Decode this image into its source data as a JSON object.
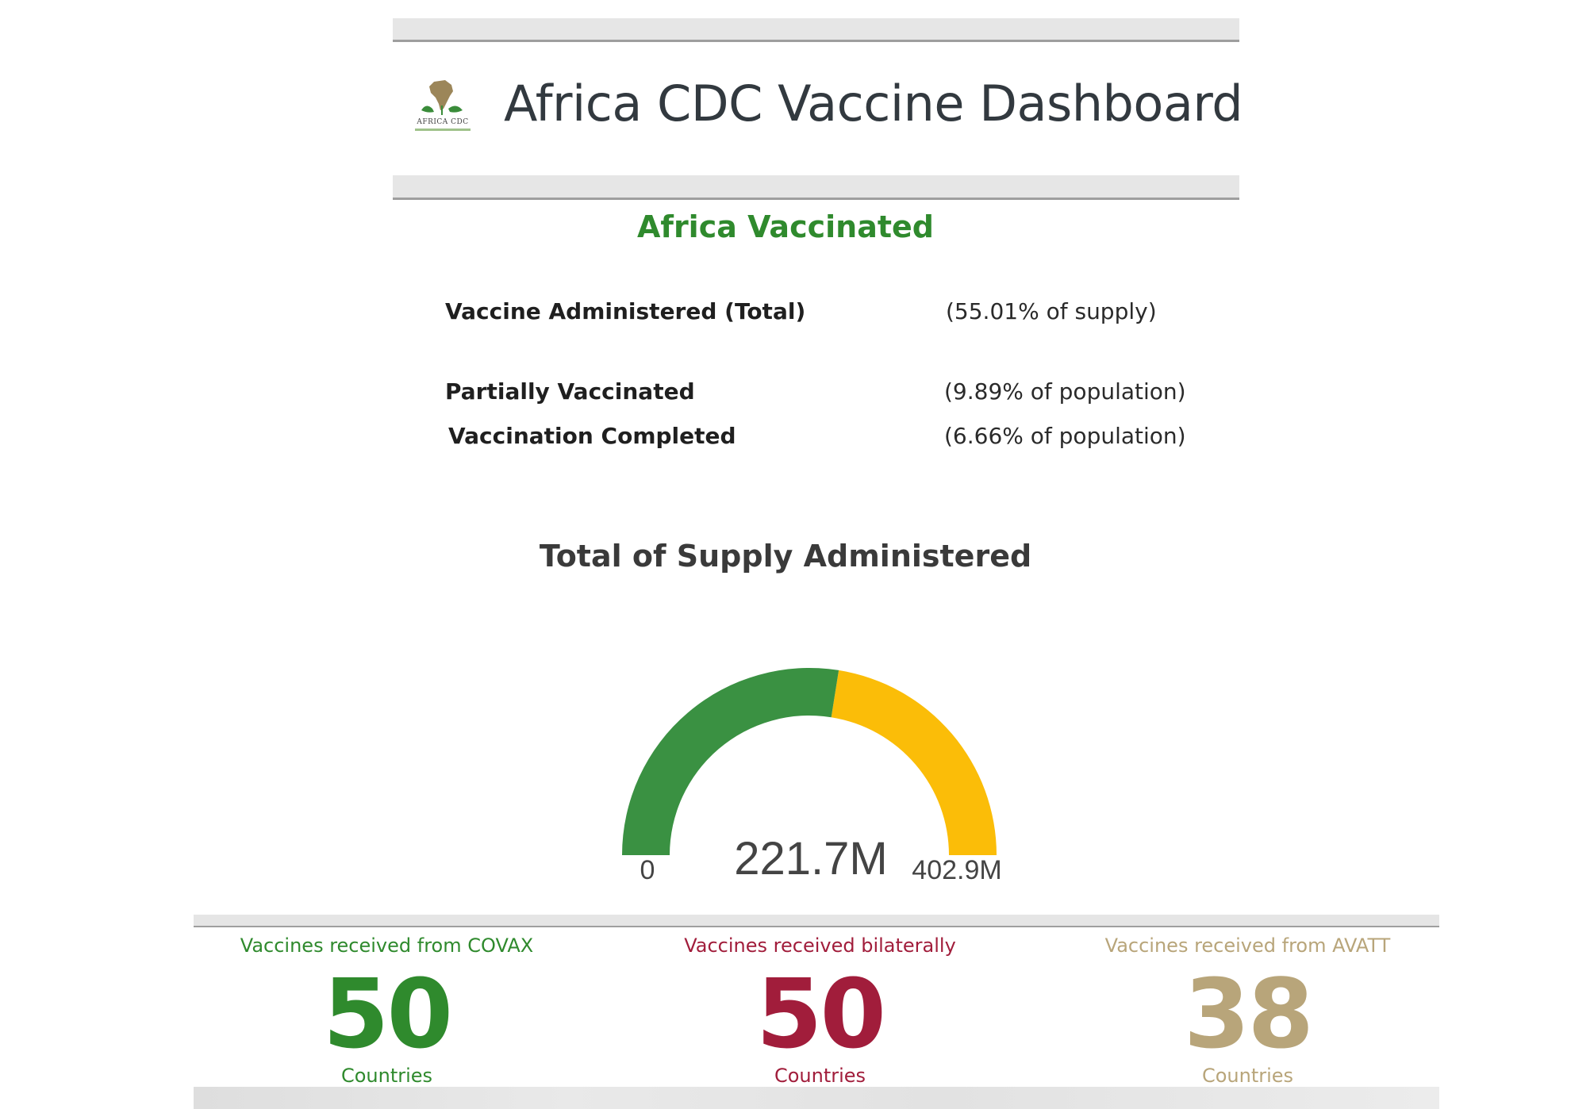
{
  "header": {
    "logo_text": "AFRICA CDC",
    "title": "Africa CDC Vaccine Dashboard"
  },
  "summary": {
    "section_title": "Africa Vaccinated",
    "rows": [
      {
        "label": "Vaccine Administered (Total)",
        "value": "(55.01% of supply)"
      },
      {
        "label": "Partially Vaccinated",
        "value": "(9.89% of population)"
      },
      {
        "label": "Vaccination Completed",
        "value": "(6.66% of population)"
      }
    ]
  },
  "chart_data": {
    "type": "gauge",
    "title": "Total of Supply Administered",
    "value": 221.7,
    "value_label": "221.7M",
    "min": 0,
    "min_label": "0",
    "max": 402.9,
    "max_label": "402.9M",
    "fill_color": "#3a9142",
    "remaining_color": "#fbbd08"
  },
  "stats": [
    {
      "heading": "Vaccines received from COVAX",
      "number": "50",
      "unit": "Countries",
      "color": "#2f8a2d"
    },
    {
      "heading": "Vaccines received bilaterally",
      "number": "50",
      "unit": "Countries",
      "color": "#a11d3b"
    },
    {
      "heading": "Vaccines received from AVATT",
      "number": "38",
      "unit": "Countries",
      "color": "#b8a57a"
    }
  ]
}
